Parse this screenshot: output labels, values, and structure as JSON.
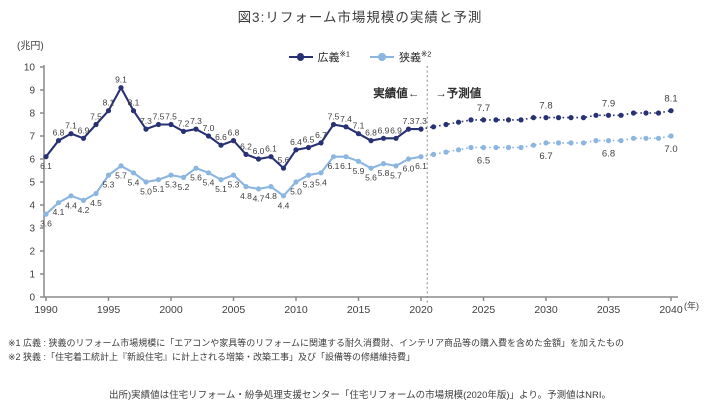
{
  "title": "図3:リフォーム市場規模の実績と予測",
  "chart_data": {
    "type": "line",
    "unit_label": "(兆円)",
    "x_axis_suffix": "(年)",
    "x_ticks": [
      1990,
      1995,
      2000,
      2005,
      2010,
      2015,
      2020,
      2025,
      2030,
      2035,
      2040
    ],
    "ylim": [
      0,
      10
    ],
    "y_ticks": [
      0,
      1,
      2,
      3,
      4,
      5,
      6,
      7,
      8,
      9,
      10
    ],
    "grid": "off",
    "legend_position": "top-center",
    "actual_start_year": 1990,
    "forecast_start_year": 2021,
    "end_year": 2040,
    "boundary_year": 2020.5,
    "annotation": {
      "left": "実績値←",
      "right": "→予測値"
    },
    "forecast_label_years": [
      2025,
      2030,
      2035,
      2040
    ],
    "axis_color": "#8a8a8a",
    "label_color": "#3f3f3f",
    "annotation_color": "#2e2e2e",
    "series": [
      {
        "name": "広義",
        "sup": "※1",
        "color": "#283173",
        "label_pos": "above",
        "actual": [
          6.1,
          6.8,
          7.1,
          6.9,
          7.5,
          8.1,
          9.1,
          8.1,
          7.3,
          7.5,
          7.5,
          7.2,
          7.3,
          7.0,
          6.6,
          6.8,
          6.2,
          6.0,
          6.1,
          5.6,
          6.4,
          6.5,
          6.7,
          7.5,
          7.4,
          7.1,
          6.8,
          6.9,
          6.9,
          7.3,
          7.3
        ],
        "forecast": [
          7.4,
          7.5,
          7.6,
          7.7,
          7.7,
          7.7,
          7.7,
          7.7,
          7.8,
          7.8,
          7.8,
          7.8,
          7.8,
          7.9,
          7.9,
          7.9,
          8.0,
          8.0,
          8.0,
          8.1
        ]
      },
      {
        "name": "狭義",
        "sup": "※2",
        "color": "#8cb6e0",
        "label_pos": "below",
        "actual": [
          3.6,
          4.1,
          4.4,
          4.2,
          4.5,
          5.3,
          5.7,
          5.4,
          5.0,
          5.1,
          5.3,
          5.2,
          5.6,
          5.4,
          5.1,
          5.3,
          4.8,
          4.7,
          4.8,
          4.4,
          5.0,
          5.3,
          5.4,
          6.1,
          6.1,
          5.9,
          5.6,
          5.8,
          5.7,
          6.0,
          6.1
        ],
        "forecast": [
          6.2,
          6.3,
          6.4,
          6.5,
          6.5,
          6.5,
          6.5,
          6.5,
          6.6,
          6.7,
          6.7,
          6.7,
          6.7,
          6.8,
          6.8,
          6.8,
          6.9,
          6.9,
          6.9,
          7.0
        ]
      }
    ]
  },
  "footnotes": [
    "※1 広義 : 狭義のリフォーム市場規模に「エアコンや家具等のリフォームに関連する耐久消費財、インテリア商品等の購入費を含めた金額」を加えたもの",
    "※2 狭義 :「住宅着工統計上『新設住宅』に計上される増築・改築工事」及び「設備等の修繕維持費」"
  ],
  "source": "出所)実績値は住宅リフォーム・紛争処理支援センター「住宅リフォームの市場規模(2020年版)」より。予測値はNRI。"
}
